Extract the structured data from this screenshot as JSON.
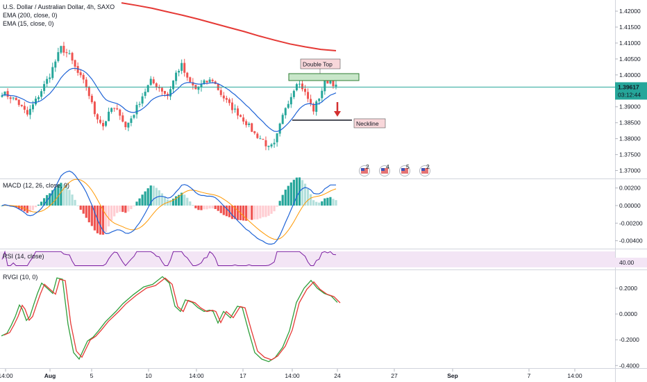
{
  "header": {
    "title": "U.S. Dollar / Australian Dollar, 4h, SAXO",
    "indicators": [
      "EMA (200, close, 0)",
      "EMA (15, close, 0)"
    ]
  },
  "colors": {
    "up": "#26a69a",
    "down": "#ef5350",
    "ema200": "#e53935",
    "ema15": "#1e63d6",
    "macd_line": "#1e63d6",
    "signal_line": "#ff9800",
    "rsi_line": "#7b1fa2",
    "rsi_band": "#f3e5f5",
    "rvgi_green": "#2e9e3a",
    "rvgi_red": "#e53935",
    "price_line": "#26a69a",
    "annotation_box": "#f8d7da"
  },
  "price_axis": {
    "ticks": [
      "1.42000",
      "1.41500",
      "1.41000",
      "1.40500",
      "1.40000",
      "1.39500",
      "1.39000",
      "1.38500",
      "1.38000",
      "1.37500",
      "1.37000"
    ]
  },
  "current_price": {
    "value": "1.39617",
    "countdown": "03:12:44"
  },
  "annotations": {
    "double_top": "Double Top",
    "neckline": "Neckline",
    "event_badges": [
      "2",
      "4",
      "5",
      "2"
    ]
  },
  "time_axis": {
    "ticks": [
      "14:00",
      "Aug",
      "5",
      "10",
      "14:00",
      "17",
      "14:00",
      "24",
      "27",
      "Sep",
      "7",
      "14:00"
    ]
  },
  "panels": {
    "macd": {
      "label": "MACD (12, 26, close, 9)",
      "ticks": [
        "0.00200",
        "0.00000",
        "-0.00200",
        "-0.00400"
      ]
    },
    "rsi": {
      "label": "RSI (14, close)",
      "ticks": [
        "40.00"
      ]
    },
    "rvgi": {
      "label": "RVGI (10, 0)",
      "ticks": [
        "0.2000",
        "0.0000",
        "-0.2000",
        "-0.4000"
      ]
    }
  },
  "chart_data": {
    "type": "candlestick",
    "title": "U.S. Dollar / Australian Dollar, 4h, SAXO",
    "ylim": [
      1.3675,
      1.4235
    ],
    "series": [
      {
        "name": "EMA (200, close, 0)",
        "values": [
          1.4226,
          1.4218,
          1.4209,
          1.4198,
          1.4187,
          1.4175,
          1.4162,
          1.4149,
          1.4136,
          1.4122,
          1.4109,
          1.4097,
          1.4088,
          1.408,
          1.4076
        ]
      },
      {
        "name": "EMA (15, close, 0)"
      }
    ],
    "macd": {
      "ylim": [
        -0.0049,
        0.003
      ]
    },
    "rsi": {
      "level": 40
    },
    "rvgi": {
      "ylim": [
        -0.42,
        0.34
      ]
    }
  }
}
